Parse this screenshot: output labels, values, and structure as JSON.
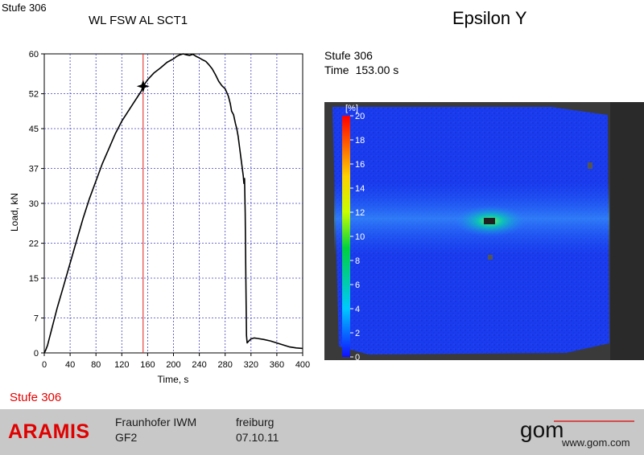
{
  "header": {
    "stage_label": "Stufe 306",
    "chart_title": "WL FSW AL SCT1",
    "panel_title": "Epsilon Y"
  },
  "stage_info": {
    "stage": "Stufe 306",
    "time_label": "Time",
    "time_value": "153.00 s"
  },
  "bottom_stage": "Stufe 306",
  "footer": {
    "brand": "ARAMIS",
    "institute": "Fraunhofer IWM",
    "project": "GF2",
    "place": "freiburg",
    "date": "07.10.11",
    "logo_text": "gom",
    "website": "www.gom.com"
  },
  "colors": {
    "brand_red": "#e00000",
    "cursor_line": "#e02020",
    "grid": "#4040c0",
    "footer_bg": "#c8c8c8"
  },
  "chart_data": {
    "type": "line",
    "xlabel": "Time, s",
    "ylabel": "Load, kN",
    "xlim": [
      0,
      400
    ],
    "ylim": [
      0,
      60
    ],
    "x_ticks": [
      0,
      40,
      80,
      120,
      160,
      200,
      240,
      280,
      320,
      360,
      400
    ],
    "y_ticks": [
      0,
      7,
      15,
      22,
      30,
      37,
      45,
      52,
      60
    ],
    "grid": true,
    "cursor_x": 153,
    "marker": {
      "x": 153,
      "y": 53.5
    },
    "series": [
      {
        "x": [
          0,
          2,
          5,
          10,
          20,
          30,
          40,
          50,
          60,
          70,
          80,
          90,
          100,
          110,
          120,
          130,
          140,
          150,
          153,
          160,
          170,
          180,
          190,
          200,
          205,
          210,
          215,
          220,
          225,
          230,
          235,
          240,
          245,
          250,
          255,
          260,
          265,
          270,
          275,
          280,
          285,
          288,
          290,
          293,
          296,
          298,
          300,
          302,
          304,
          306,
          308,
          309,
          310,
          311,
          312,
          313,
          314,
          316,
          320,
          325,
          330,
          340,
          350,
          360,
          370,
          380,
          390,
          400
        ],
        "y": [
          0,
          0.5,
          1.5,
          4,
          9,
          13.5,
          18,
          22.5,
          27,
          31,
          34.5,
          38,
          41,
          44,
          46.5,
          48.5,
          50.5,
          52.5,
          53.5,
          54.8,
          56.2,
          57.2,
          58.3,
          59,
          59.5,
          59.8,
          60,
          59.8,
          59.7,
          59.9,
          59.5,
          59.2,
          58.8,
          58.5,
          57.8,
          57,
          55.8,
          54.5,
          53.6,
          53,
          51.5,
          50,
          48.5,
          47.8,
          46,
          45,
          43.5,
          41.5,
          39.5,
          37.5,
          35.5,
          34,
          35,
          28,
          15,
          3.5,
          2,
          2.3,
          2.8,
          3,
          2.9,
          2.7,
          2.4,
          2,
          1.6,
          1.2,
          1,
          0.9
        ]
      }
    ]
  },
  "strain_map": {
    "unit_label": "[%]",
    "scale_values": [
      20,
      18,
      16,
      14,
      12,
      10,
      8,
      6,
      4,
      2,
      0
    ],
    "scale_min": 0,
    "scale_max": 20
  }
}
